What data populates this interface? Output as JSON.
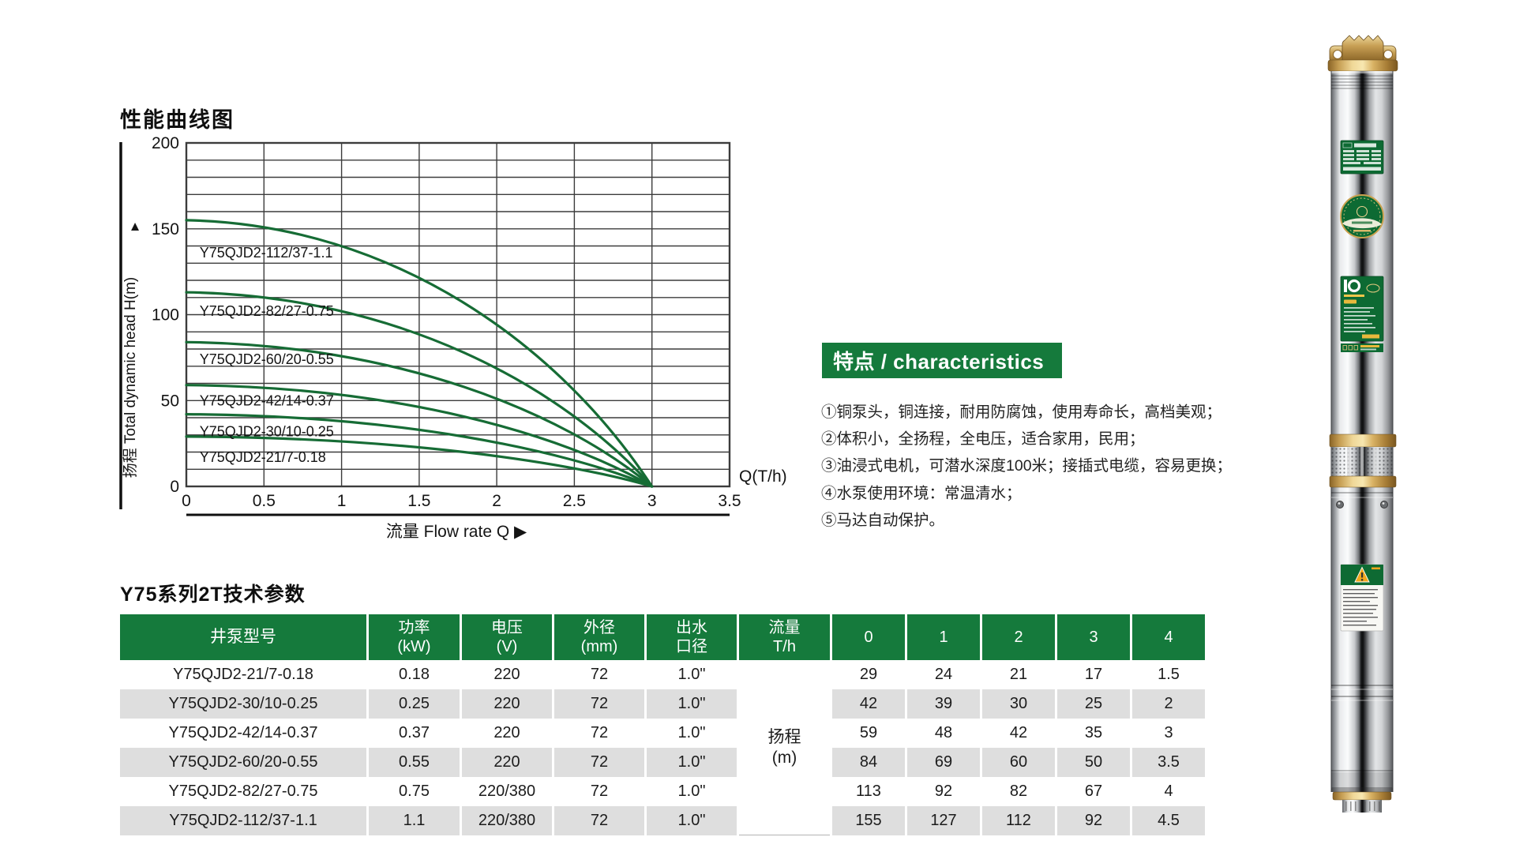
{
  "chart": {
    "title": "性能曲线图",
    "y_axis": {
      "label": "扬程 Total dynamic head H(m)",
      "arrow": "▲",
      "ticks": [
        "200",
        "150",
        "100",
        "50",
        "0"
      ]
    },
    "x_axis": {
      "unit": "Q(T/h)",
      "caption": "流量 Flow rate Q ▶",
      "ticks": [
        "0",
        "0.5",
        "1",
        "1.5",
        "2",
        "2.5",
        "3",
        "3.5"
      ]
    },
    "chart_data": {
      "type": "line",
      "title": "性能曲线图",
      "xlabel": "流量 Flow rate Q (T/h)",
      "ylabel": "扬程 Total dynamic head H(m)",
      "xlim": [
        0,
        3.5
      ],
      "ylim": [
        0,
        200
      ],
      "x_grid_step": 0.5,
      "y_grid_step": 10,
      "note": "Six head-flow curves, each starting at its shut-off head at Q=0 and converging to H=0 at Q=3 T/h",
      "series": [
        {
          "name": "Y75QJD2-112/37-1.1",
          "start_head_m": 155,
          "end_point": [
            3,
            0
          ],
          "label_h": 136
        },
        {
          "name": "Y75QJD2-82/27-0.75",
          "start_head_m": 113,
          "end_point": [
            3,
            0
          ],
          "label_h": 102
        },
        {
          "name": "Y75QJD2-60/20-0.55",
          "start_head_m": 84,
          "end_point": [
            3,
            0
          ],
          "label_h": 74
        },
        {
          "name": "Y75QJD2-42/14-0.37",
          "start_head_m": 59,
          "end_point": [
            3,
            0
          ],
          "label_h": 50
        },
        {
          "name": "Y75QJD2-30/10-0.25",
          "start_head_m": 42,
          "end_point": [
            3,
            0
          ],
          "label_h": 32
        },
        {
          "name": "Y75QJD2-21/7-0.18",
          "start_head_m": 29,
          "end_point": [
            3,
            0
          ],
          "label_h": 17
        }
      ]
    }
  },
  "characteristics": {
    "title": "特点 / characteristics",
    "items": [
      "①铜泵头，铜连接，耐用防腐蚀，使用寿命长，高档美观；",
      "②体积小，全扬程，全电压，适合家用，民用；",
      "③油浸式电机，可潜水深度100米；接插式电缆，容易更换；",
      "④水泵使用环境：常温清水；",
      "⑤马达自动保护。"
    ]
  },
  "spec_table": {
    "title": "Y75系列2T技术参数",
    "headers": [
      {
        "line1": "井泵型号",
        "line2": ""
      },
      {
        "line1": "功率",
        "line2": "(kW)"
      },
      {
        "line1": "电压",
        "line2": "(V)"
      },
      {
        "line1": "外径",
        "line2": "(mm)"
      },
      {
        "line1": "出水",
        "line2": "口径"
      },
      {
        "line1": "流量",
        "line2": "T/h"
      },
      {
        "line1": "0",
        "line2": ""
      },
      {
        "line1": "1",
        "line2": ""
      },
      {
        "line1": "2",
        "line2": ""
      },
      {
        "line1": "3",
        "line2": ""
      },
      {
        "line1": "4",
        "line2": ""
      }
    ],
    "merged_cell": {
      "line1": "扬程",
      "line2": "(m)"
    },
    "rows": [
      {
        "model": "Y75QJD2-21/7-0.18",
        "power_kw": "0.18",
        "voltage_v": "220",
        "od_mm": "72",
        "outlet": "1.0\"",
        "heads": [
          "29",
          "24",
          "21",
          "17",
          "1.5"
        ]
      },
      {
        "model": "Y75QJD2-30/10-0.25",
        "power_kw": "0.25",
        "voltage_v": "220",
        "od_mm": "72",
        "outlet": "1.0\"",
        "heads": [
          "42",
          "39",
          "30",
          "25",
          "2"
        ]
      },
      {
        "model": "Y75QJD2-42/14-0.37",
        "power_kw": "0.37",
        "voltage_v": "220",
        "od_mm": "72",
        "outlet": "1.0\"",
        "heads": [
          "59",
          "48",
          "42",
          "35",
          "3"
        ]
      },
      {
        "model": "Y75QJD2-60/20-0.55",
        "power_kw": "0.55",
        "voltage_v": "220",
        "od_mm": "72",
        "outlet": "1.0\"",
        "heads": [
          "84",
          "69",
          "60",
          "50",
          "3.5"
        ]
      },
      {
        "model": "Y75QJD2-82/27-0.75",
        "power_kw": "0.75",
        "voltage_v": "220/380",
        "od_mm": "72",
        "outlet": "1.0\"",
        "heads": [
          "113",
          "92",
          "82",
          "67",
          "4"
        ]
      },
      {
        "model": "Y75QJD2-112/37-1.1",
        "power_kw": "1.1",
        "voltage_v": "220/380",
        "od_mm": "72",
        "outlet": "1.0\"",
        "heads": [
          "155",
          "127",
          "112",
          "92",
          "4.5"
        ]
      }
    ]
  },
  "colors": {
    "green": "#157a3c",
    "curve_green": "#166c35",
    "row_gray": "#dedede",
    "gold": "#c9a050",
    "grid": "#3c3c3c"
  }
}
